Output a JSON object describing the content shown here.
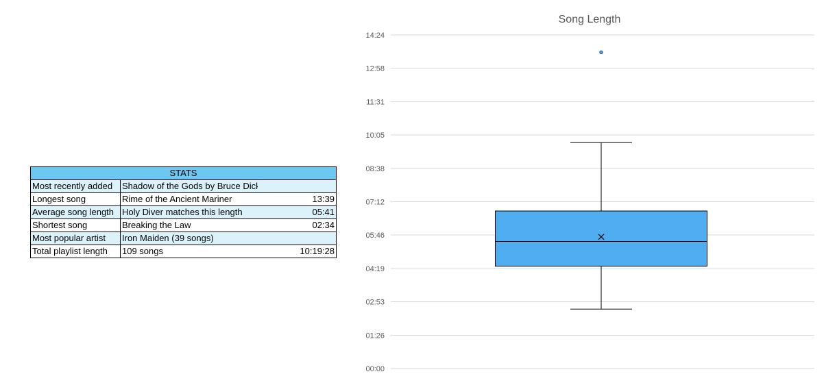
{
  "stats": {
    "header": "STATS",
    "rows": [
      {
        "label": "Most recently added",
        "value": "Shadow of the Gods by Bruce Dickinson",
        "num": ""
      },
      {
        "label": "Longest song",
        "value": "Rime of the Ancient Mariner",
        "num": "13:39"
      },
      {
        "label": "Average song length",
        "value": "Holy Diver matches this length",
        "num": "05:41"
      },
      {
        "label": "Shortest song",
        "value": "Breaking the Law",
        "num": "02:34"
      },
      {
        "label": "Most popular artist",
        "value": "Iron Maiden (39 songs)",
        "num": ""
      },
      {
        "label": "Total playlist length",
        "value": "109 songs",
        "num": "10:19:28"
      }
    ]
  },
  "colors": {
    "header_fill": "#6cc8f0",
    "alt_row_fill": "#dcf2fb",
    "box_fill": "#4fadf0",
    "gridline": "#d9d9d9",
    "text_muted": "#595959"
  },
  "chart_data": {
    "type": "box",
    "title": "Song Length",
    "xlabel": "",
    "ylabel": "",
    "y_unit": "mm:ss",
    "ylim": [
      "00:00",
      "14:24"
    ],
    "y_ticks": [
      "00:00",
      "01:26",
      "02:53",
      "04:19",
      "05:46",
      "07:12",
      "08:38",
      "10:05",
      "11:31",
      "12:58",
      "14:24"
    ],
    "grid": true,
    "legend": "none",
    "series": [
      {
        "whisker_low": "02:34",
        "q1": "04:25",
        "median": "05:29",
        "q3": "06:48",
        "whisker_high": "09:45",
        "mean": "05:41",
        "outliers": [
          "13:39"
        ]
      }
    ]
  }
}
